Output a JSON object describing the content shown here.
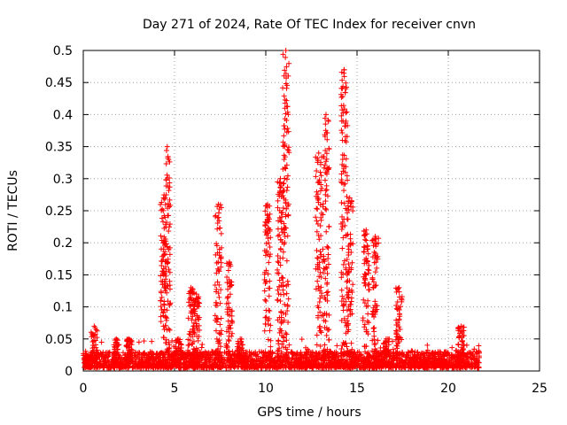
{
  "chart_data": {
    "type": "scatter",
    "title": "Day 271 of 2024, Rate Of TEC Index for receiver cnvn",
    "xlabel": "GPS time / hours",
    "ylabel": "ROTI / TECUs",
    "xlim": [
      0,
      25
    ],
    "ylim": [
      0,
      0.5
    ],
    "xticks": [
      0,
      5,
      10,
      15,
      20,
      25
    ],
    "yticks": [
      0,
      0.05,
      0.1,
      0.15,
      0.2,
      0.25,
      0.3,
      0.35,
      0.4,
      0.45,
      0.5
    ],
    "xtick_labels": [
      "0",
      "5",
      "10",
      "15",
      "20",
      "25"
    ],
    "ytick_labels": [
      "0",
      "0.05",
      "0.1",
      "0.15",
      "0.2",
      "0.25",
      "0.3",
      "0.35",
      "0.4",
      "0.45",
      "0.5"
    ],
    "grid": true,
    "marker": "+",
    "marker_color": "#ff0000",
    "x_data_range": [
      0,
      21.7
    ],
    "baseline_band": [
      0.005,
      0.03
    ],
    "spike_clusters": [
      {
        "x": 0.6,
        "peak": 0.07
      },
      {
        "x": 1.8,
        "peak": 0.05
      },
      {
        "x": 2.5,
        "peak": 0.05
      },
      {
        "x": 4.4,
        "peak": 0.27
      },
      {
        "x": 4.6,
        "peak": 0.35
      },
      {
        "x": 5.2,
        "peak": 0.05
      },
      {
        "x": 5.9,
        "peak": 0.13
      },
      {
        "x": 6.2,
        "peak": 0.12
      },
      {
        "x": 7.4,
        "peak": 0.26
      },
      {
        "x": 8.0,
        "peak": 0.17
      },
      {
        "x": 8.6,
        "peak": 0.05
      },
      {
        "x": 10.1,
        "peak": 0.26
      },
      {
        "x": 10.8,
        "peak": 0.3
      },
      {
        "x": 11.1,
        "peak": 0.5
      },
      {
        "x": 12.9,
        "peak": 0.34
      },
      {
        "x": 13.3,
        "peak": 0.4
      },
      {
        "x": 14.3,
        "peak": 0.47
      },
      {
        "x": 14.6,
        "peak": 0.27
      },
      {
        "x": 15.5,
        "peak": 0.22
      },
      {
        "x": 16.0,
        "peak": 0.21
      },
      {
        "x": 16.6,
        "peak": 0.05
      },
      {
        "x": 17.3,
        "peak": 0.13
      },
      {
        "x": 20.7,
        "peak": 0.07
      }
    ]
  }
}
